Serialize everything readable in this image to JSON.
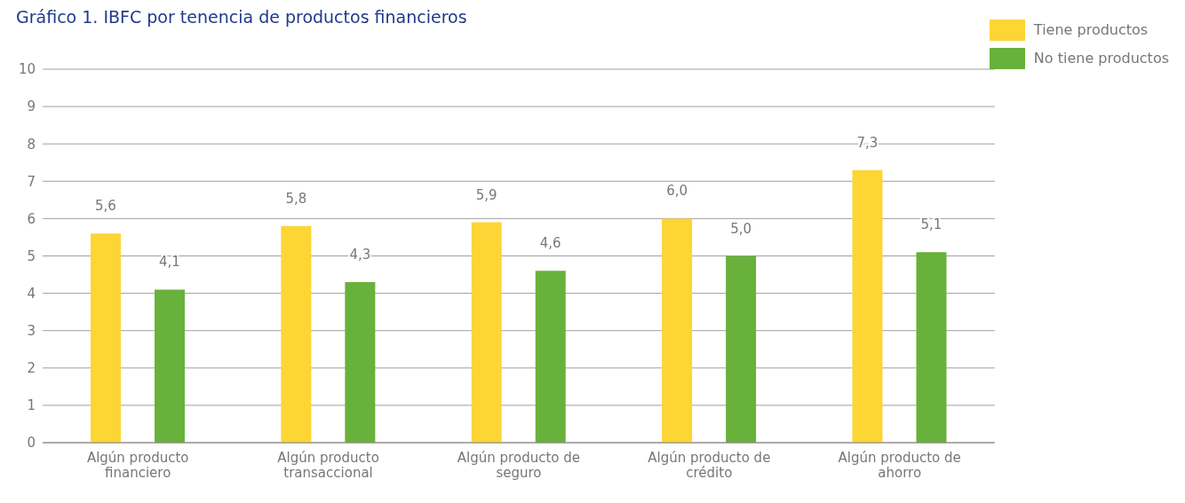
{
  "chart_data": {
    "type": "bar",
    "title": "Gráfico 1. IBFC por tenencia de productos financieros",
    "categories": [
      "Algún producto financiero",
      "Algún producto transaccional",
      "Algún producto de seguro",
      "Algún producto de crédito",
      "Algún producto de ahorro"
    ],
    "series": [
      {
        "name": "Tiene productos",
        "color": "#fdd535",
        "values": [
          5.6,
          5.8,
          5.9,
          6.0,
          7.3
        ],
        "value_labels": [
          "5,6",
          "5,8",
          "5,9",
          "6,0",
          "7,3"
        ]
      },
      {
        "name": "No tiene productos",
        "color": "#68b13a",
        "values": [
          4.1,
          4.3,
          4.6,
          5.0,
          5.1
        ],
        "value_labels": [
          "4,1",
          "4,3",
          "4,6",
          "5,0",
          "5,1"
        ]
      }
    ],
    "ylim": [
      0,
      10
    ],
    "yticks": [
      0,
      1,
      2,
      3,
      4,
      5,
      6,
      7,
      8,
      9,
      10
    ],
    "grid": "y",
    "legend": "top right"
  }
}
